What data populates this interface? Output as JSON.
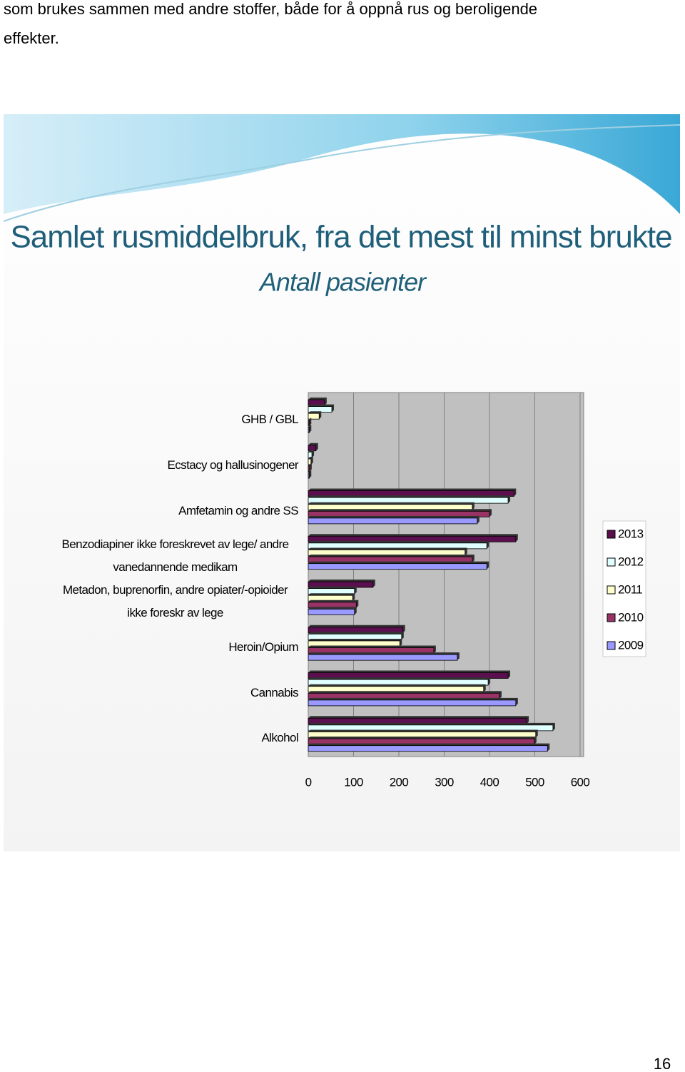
{
  "text": [
    "som brukes sammen med andre stoffer, både for å oppnå rus og beroligende",
    "effekter."
  ],
  "chart_data": {
    "type": "hbar3d",
    "title": "Samlet rusmiddelbruk, fra det mest til minst brukte",
    "subtitle": "Antall pasienter",
    "categories": [
      "GHB / GBL",
      "Ecstacy og hallusinogener",
      "Amfetamin og andre SS",
      "Benzodiapiner ikke foreskrevet av lege/ andre vanedannende medikam",
      "Metadon, buprenorfin, andre opiater/-opioider ikke foreskr av lege",
      "Heroin/Opium",
      "Cannabis",
      "Alkohol"
    ],
    "series": [
      {
        "name": "2013",
        "color": "#5b0f4e",
        "values": [
          36,
          17,
          454,
          458,
          143,
          209,
          441,
          482
        ]
      },
      {
        "name": "2012",
        "color": "#e0ffff",
        "values": [
          52,
          8,
          441,
          394,
          102,
          206,
          397,
          540
        ]
      },
      {
        "name": "2011",
        "color": "#ffffcc",
        "values": [
          24,
          6,
          362,
          346,
          98,
          202,
          387,
          502
        ]
      },
      {
        "name": "2010",
        "color": "#993366",
        "values": [
          2,
          3,
          400,
          362,
          106,
          277,
          422,
          499
        ]
      },
      {
        "name": "2009",
        "color": "#9999ff",
        "values": [
          2,
          2,
          373,
          394,
          102,
          329,
          458,
          528
        ]
      }
    ],
    "xlim": [
      0,
      600
    ],
    "xticks": [
      0,
      100,
      200,
      300,
      400,
      500,
      600
    ],
    "grid": true
  },
  "page_number": "16"
}
